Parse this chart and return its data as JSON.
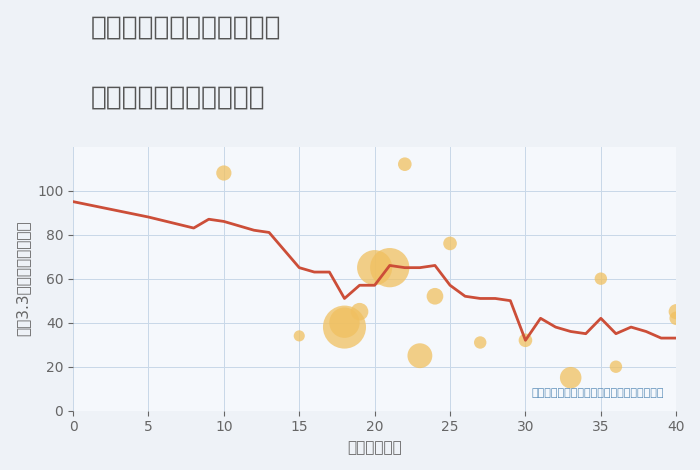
{
  "title_line1": "千葉県市原市五井中央西の",
  "title_line2": "築年数別中古戸建て価格",
  "xlabel": "築年数（年）",
  "ylabel": "坪（3.3㎡）単価（万円）",
  "bg_color": "#eef2f7",
  "plot_bg_color": "#f5f8fc",
  "line_color": "#cc4e38",
  "line_x": [
    0,
    5,
    8,
    9,
    10,
    12,
    13,
    15,
    16,
    17,
    18,
    19,
    20,
    21,
    22,
    23,
    24,
    25,
    26,
    27,
    28,
    29,
    30,
    31,
    32,
    33,
    34,
    35,
    36,
    37,
    38,
    39,
    40
  ],
  "line_y": [
    95,
    88,
    83,
    87,
    86,
    82,
    81,
    65,
    63,
    63,
    51,
    57,
    57,
    66,
    65,
    65,
    66,
    57,
    52,
    51,
    51,
    50,
    32,
    42,
    38,
    36,
    35,
    42,
    35,
    38,
    36,
    33,
    33
  ],
  "scatter_x": [
    10,
    15,
    18,
    18,
    19,
    20,
    21,
    22,
    23,
    24,
    25,
    27,
    30,
    33,
    35,
    36,
    40,
    40
  ],
  "scatter_y": [
    108,
    34,
    40,
    38,
    45,
    65,
    65,
    112,
    25,
    52,
    76,
    31,
    32,
    15,
    60,
    20,
    42,
    45
  ],
  "scatter_size": [
    15,
    8,
    60,
    120,
    20,
    80,
    100,
    12,
    40,
    18,
    12,
    10,
    12,
    30,
    10,
    10,
    12,
    15
  ],
  "scatter_color": "#f0c060",
  "scatter_alpha": 0.75,
  "annotation": "円の大きさは、取引のあった物件面積を示す",
  "annotation_color": "#5b8db8",
  "xlim": [
    0,
    40
  ],
  "ylim": [
    0,
    120
  ],
  "xticks": [
    0,
    5,
    10,
    15,
    20,
    25,
    30,
    35,
    40
  ],
  "yticks": [
    0,
    20,
    40,
    60,
    80,
    100
  ],
  "title_color": "#555555",
  "label_color": "#666666",
  "grid_color": "#c8d8e8",
  "line_width": 2.0,
  "title_fontsize": 19,
  "label_fontsize": 11,
  "tick_fontsize": 10
}
